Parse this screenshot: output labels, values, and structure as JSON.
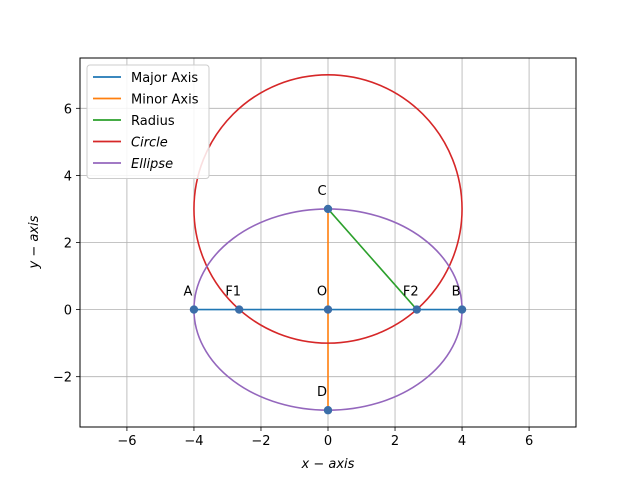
{
  "chart_data": {
    "type": "line",
    "title": "",
    "xlabel": "x − axis",
    "ylabel": "y − axis",
    "xlim": [
      -7.4,
      7.4
    ],
    "ylim": [
      -3.5,
      7.5
    ],
    "xticks": [
      -6,
      -4,
      -2,
      0,
      2,
      4,
      6
    ],
    "yticks": [
      -2,
      0,
      2,
      4,
      6
    ],
    "xtick_labels": [
      "−6",
      "−4",
      "−2",
      "0",
      "2",
      "4",
      "6"
    ],
    "ytick_labels": [
      "−2",
      "0",
      "2",
      "4",
      "6"
    ],
    "grid": true,
    "legend_position": "top-left",
    "series": [
      {
        "name": "Major Axis",
        "kind": "segment",
        "color": "#1f77b4",
        "x": [
          -4,
          4
        ],
        "y": [
          0,
          0
        ]
      },
      {
        "name": "Minor Axis",
        "kind": "segment",
        "color": "#ff7f0e",
        "x": [
          0,
          0
        ],
        "y": [
          -3,
          3
        ]
      },
      {
        "name": "Radius",
        "kind": "segment",
        "color": "#2ca02c",
        "x": [
          0,
          2.65
        ],
        "y": [
          3,
          0
        ]
      },
      {
        "name": "Circle",
        "kind": "circle",
        "color": "#d62728",
        "center": [
          0,
          3
        ],
        "radius": 4,
        "italic": true
      },
      {
        "name": "Ellipse",
        "kind": "ellipse",
        "color": "#9467bd",
        "center": [
          0,
          0
        ],
        "a": 4,
        "b": 3,
        "italic": true
      }
    ],
    "points": [
      {
        "label": "A",
        "x": -4,
        "y": 0
      },
      {
        "label": "F1",
        "x": -2.65,
        "y": 0
      },
      {
        "label": "O",
        "x": 0,
        "y": 0
      },
      {
        "label": "F2",
        "x": 2.65,
        "y": 0
      },
      {
        "label": "B",
        "x": 4,
        "y": 0
      },
      {
        "label": "C",
        "x": 0,
        "y": 3
      },
      {
        "label": "D",
        "x": 0,
        "y": -3
      }
    ],
    "point_color": "#3b6ea8"
  }
}
